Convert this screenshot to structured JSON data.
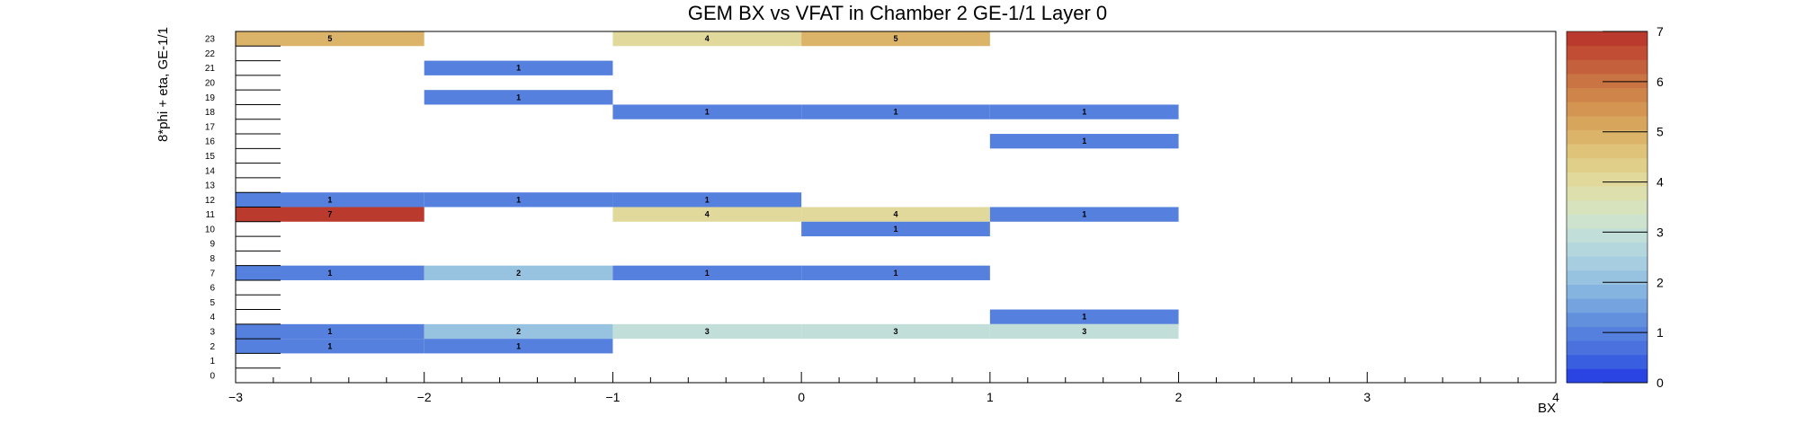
{
  "chart_data": {
    "type": "heatmap",
    "title": "GEM BX vs VFAT in Chamber 2 GE-1/1 Layer 0",
    "xlabel": "BX",
    "ylabel": "8*phi + eta, GE-1/1",
    "xlim": [
      -3,
      4
    ],
    "ylim": [
      0,
      24
    ],
    "x_ticks": [
      -3,
      -2,
      -1,
      0,
      1,
      2,
      3,
      4
    ],
    "x_tick_labels": [
      "−3",
      "−2",
      "−1",
      "0",
      "1",
      "2",
      "3",
      "4"
    ],
    "y_ticks": [
      0,
      1,
      2,
      3,
      4,
      5,
      6,
      7,
      8,
      9,
      10,
      11,
      12,
      13,
      14,
      15,
      16,
      17,
      18,
      19,
      20,
      21,
      22,
      23
    ],
    "zlim": [
      0,
      7
    ],
    "z_ticks": [
      0,
      1,
      2,
      3,
      4,
      5,
      6,
      7
    ],
    "bin_width": 1,
    "cells": [
      {
        "x": -3,
        "y": 23,
        "value": 5
      },
      {
        "x": -1,
        "y": 23,
        "value": 4
      },
      {
        "x": 0,
        "y": 23,
        "value": 5
      },
      {
        "x": -2,
        "y": 21,
        "value": 1
      },
      {
        "x": -2,
        "y": 19,
        "value": 1
      },
      {
        "x": -1,
        "y": 18,
        "value": 1
      },
      {
        "x": 0,
        "y": 18,
        "value": 1
      },
      {
        "x": 1,
        "y": 18,
        "value": 1
      },
      {
        "x": 1,
        "y": 16,
        "value": 1
      },
      {
        "x": -3,
        "y": 12,
        "value": 1
      },
      {
        "x": -2,
        "y": 12,
        "value": 1
      },
      {
        "x": -1,
        "y": 12,
        "value": 1
      },
      {
        "x": -3,
        "y": 11,
        "value": 7
      },
      {
        "x": -1,
        "y": 11,
        "value": 4
      },
      {
        "x": 0,
        "y": 11,
        "value": 4
      },
      {
        "x": 1,
        "y": 11,
        "value": 1
      },
      {
        "x": 0,
        "y": 10,
        "value": 1
      },
      {
        "x": -3,
        "y": 7,
        "value": 1
      },
      {
        "x": -2,
        "y": 7,
        "value": 2
      },
      {
        "x": -1,
        "y": 7,
        "value": 1
      },
      {
        "x": 0,
        "y": 7,
        "value": 1
      },
      {
        "x": 1,
        "y": 4,
        "value": 1
      },
      {
        "x": -3,
        "y": 3,
        "value": 1
      },
      {
        "x": -2,
        "y": 3,
        "value": 2
      },
      {
        "x": -1,
        "y": 3,
        "value": 3
      },
      {
        "x": 0,
        "y": 3,
        "value": 3
      },
      {
        "x": 1,
        "y": 3,
        "value": 3
      },
      {
        "x": -3,
        "y": 2,
        "value": 1
      },
      {
        "x": -2,
        "y": 2,
        "value": 1
      }
    ],
    "palette": [
      "#2a43e3",
      "#3a5ee0",
      "#4a71dd",
      "#5580dd",
      "#6390dd",
      "#74a3df",
      "#86b4e0",
      "#97c2e0",
      "#a6cde0",
      "#b4d6dd",
      "#c1dfd8",
      "#cde3cd",
      "#d7e3bd",
      "#dde0ad",
      "#e1d99c",
      "#e0cf89",
      "#dec379",
      "#dbb46a",
      "#d8a55d",
      "#d49552",
      "#cf844a",
      "#ca7343",
      "#c5603c",
      "#c04d34",
      "#ba3b2d"
    ],
    "grid": false,
    "legend": "colorbar-right"
  }
}
